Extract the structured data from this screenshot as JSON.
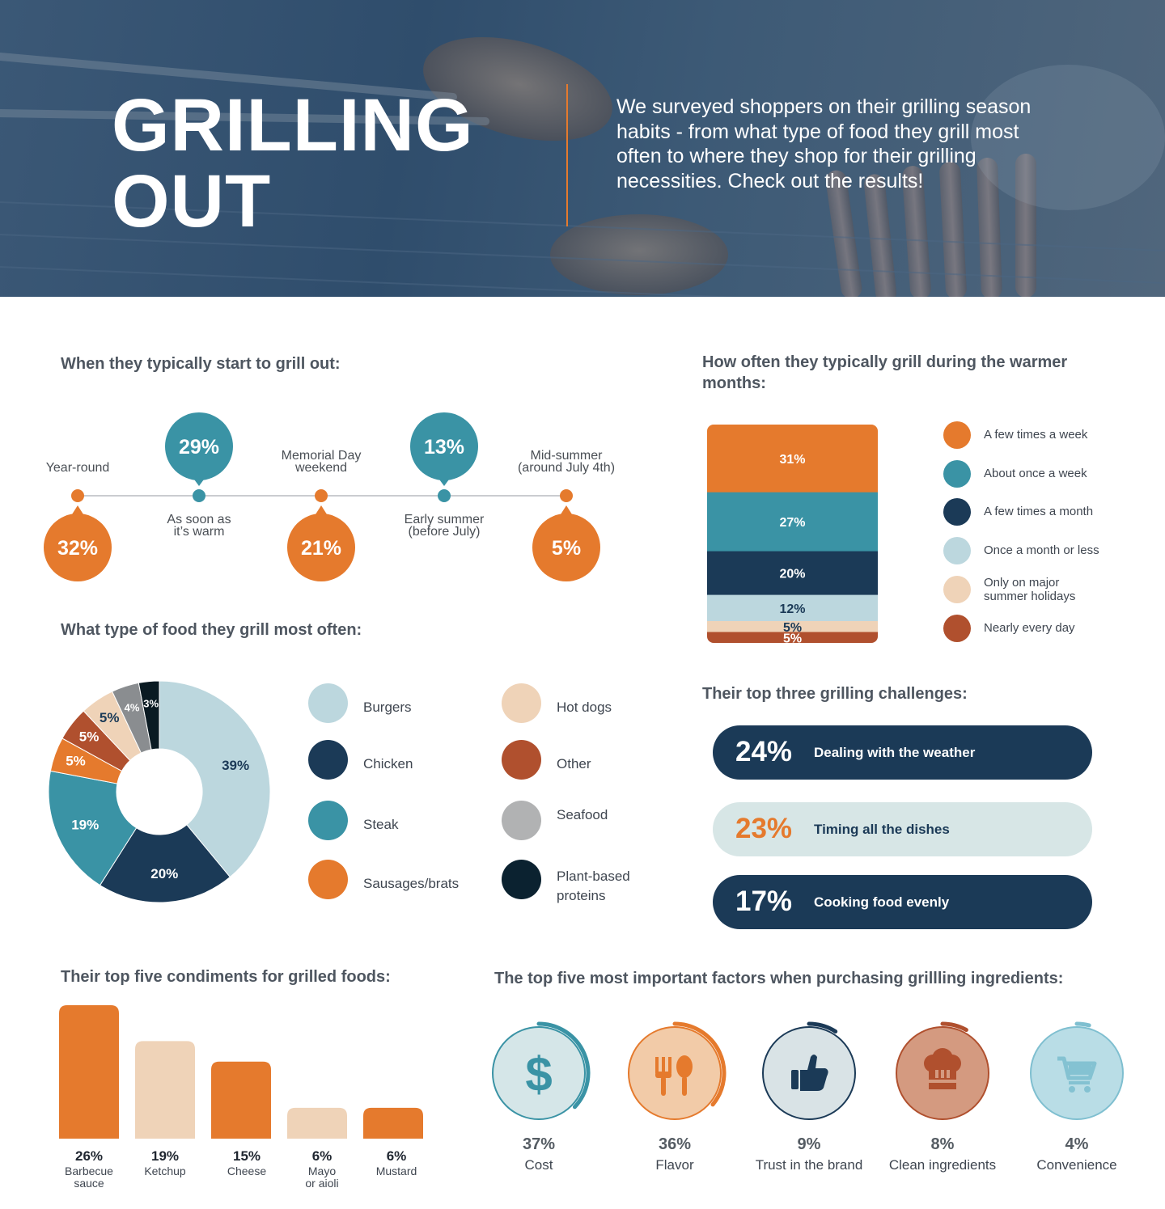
{
  "hero": {
    "title_line1": "GRILLING",
    "title_line2": "OUT",
    "intro": "We surveyed shoppers on their grilling season habits - from what type of food they grill most often to where they shop for their grilling necessities. Check out the results!"
  },
  "colors": {
    "orange": "#e57a2d",
    "teal": "#3a93a5",
    "navy": "#1b3a57",
    "light_blue": "#bcd7de",
    "peach": "#efd3b8",
    "rust": "#b0502e",
    "gray": "#8a8d90",
    "black": "#0a1a22"
  },
  "sections": {
    "start": "When they typically start to grill out:",
    "frequency": "How often they typically grill during the warmer months:",
    "food": "What type of food they grill most often:",
    "challenges": "Their top three grilling challenges:",
    "condiments": "Their top five condiments for grilled foods:",
    "factors": "The top five most important factors when purchasing grillling ingredients:"
  },
  "chart_data": [
    {
      "type": "timeline",
      "categories": [
        "Year-round",
        "As soon as it’s warm",
        "Memorial Day weekend",
        "Early summer (before July)",
        "Mid-summer (around July 4th)"
      ],
      "values": [
        32,
        29,
        21,
        13,
        5
      ],
      "value_labels": [
        "32%",
        "29%",
        "21%",
        "13%",
        "5%"
      ],
      "label_lines": [
        [
          "Year-round"
        ],
        [
          "As soon as",
          "it’s warm"
        ],
        [
          "Memorial Day",
          "weekend"
        ],
        [
          "Early summer",
          "(before July)"
        ],
        [
          "Mid-summer",
          "(around July 4th)"
        ]
      ]
    },
    {
      "type": "bar",
      "stacked": true,
      "categories": [
        "A few times a week",
        "About once a week",
        "A few times a month",
        "Once a month or less",
        "Only on major summer holidays",
        "Nearly every day"
      ],
      "values": [
        31,
        27,
        20,
        12,
        5,
        5
      ],
      "value_labels": [
        "31%",
        "27%",
        "20%",
        "12%",
        "5%",
        "5%"
      ],
      "legend_lines": [
        [
          "A few times a week"
        ],
        [
          "About once a week"
        ],
        [
          "A few times a month"
        ],
        [
          "Once a month or less"
        ],
        [
          "Only on major",
          "summer holidays"
        ],
        [
          "Nearly every day"
        ]
      ]
    },
    {
      "type": "pie",
      "donut": true,
      "categories": [
        "Burgers",
        "Chicken",
        "Steak",
        "Sausages/brats",
        "Other",
        "Hot dogs",
        "Seafood",
        "Plant-based proteins"
      ],
      "values": [
        39,
        20,
        19,
        5,
        5,
        5,
        4,
        3
      ],
      "value_labels": [
        "39%",
        "20%",
        "19%",
        "5%",
        "5%",
        "5%",
        "4%",
        "3%"
      ],
      "legend": [
        [
          "Burgers"
        ],
        [
          "Chicken"
        ],
        [
          "Steak"
        ],
        [
          "Sausages/brats"
        ],
        [
          "Hot dogs"
        ],
        [
          "Other"
        ],
        [
          "Seafood"
        ],
        [
          "Plant-based",
          "proteins"
        ]
      ]
    },
    {
      "type": "table",
      "title": "Their top three grilling challenges:",
      "rows": [
        {
          "value": 24,
          "label_pct": "24%",
          "label": "Dealing with the weather"
        },
        {
          "value": 23,
          "label_pct": "23%",
          "label": "Timing all the dishes"
        },
        {
          "value": 17,
          "label_pct": "17%",
          "label": "Cooking food evenly"
        }
      ]
    },
    {
      "type": "bar",
      "categories": [
        "Barbecue sauce",
        "Ketchup",
        "Cheese",
        "Mayo or aioli",
        "Mustard"
      ],
      "values": [
        26,
        19,
        15,
        6,
        6
      ],
      "value_labels": [
        "26%",
        "19%",
        "15%",
        "6%",
        "6%"
      ],
      "label_lines": [
        [
          "Barbecue",
          "sauce"
        ],
        [
          "Ketchup"
        ],
        [
          "Cheese"
        ],
        [
          "Mayo",
          "or aioli"
        ],
        [
          "Mustard"
        ]
      ]
    },
    {
      "type": "pie",
      "categories": [
        "Cost",
        "Flavor",
        "Trust in the brand",
        "Clean ingredients",
        "Convenience"
      ],
      "values": [
        37,
        36,
        9,
        8,
        4
      ],
      "value_labels": [
        "37%",
        "36%",
        "9%",
        "8%",
        "4%"
      ],
      "icons": [
        "dollar-icon",
        "fork-spoon-icon",
        "thumbs-up-icon",
        "chef-hat-icon",
        "shopping-cart-icon"
      ]
    }
  ]
}
